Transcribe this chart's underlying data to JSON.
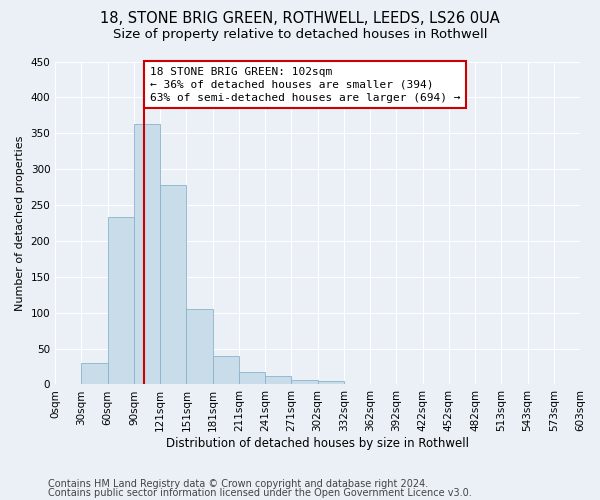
{
  "title1": "18, STONE BRIG GREEN, ROTHWELL, LEEDS, LS26 0UA",
  "title2": "Size of property relative to detached houses in Rothwell",
  "xlabel": "Distribution of detached houses by size in Rothwell",
  "ylabel": "Number of detached properties",
  "bar_values": [
    0,
    30,
    233,
    363,
    278,
    105,
    40,
    18,
    12,
    6,
    5,
    0,
    0,
    0,
    0,
    0,
    0,
    0,
    0,
    0
  ],
  "bin_labels": [
    "0sqm",
    "30sqm",
    "60sqm",
    "90sqm",
    "121sqm",
    "151sqm",
    "181sqm",
    "211sqm",
    "241sqm",
    "271sqm",
    "302sqm",
    "332sqm",
    "362sqm",
    "392sqm",
    "422sqm",
    "452sqm",
    "482sqm",
    "513sqm",
    "543sqm",
    "573sqm",
    "603sqm"
  ],
  "bar_color": "#c9dce9",
  "bar_edge_color": "#8ab4cc",
  "vline_color": "#cc0000",
  "annotation_text": "18 STONE BRIG GREEN: 102sqm\n← 36% of detached houses are smaller (394)\n63% of semi-detached houses are larger (694) →",
  "annotation_box_color": "#ffffff",
  "annotation_box_edge": "#cc0000",
  "ylim": [
    0,
    450
  ],
  "yticks": [
    0,
    50,
    100,
    150,
    200,
    250,
    300,
    350,
    400,
    450
  ],
  "footer1": "Contains HM Land Registry data © Crown copyright and database right 2024.",
  "footer2": "Contains public sector information licensed under the Open Government Licence v3.0.",
  "background_color": "#eaf0f6",
  "plot_bg_color": "#eaf0f6",
  "title1_fontsize": 10.5,
  "title2_fontsize": 9.5,
  "xlabel_fontsize": 8.5,
  "ylabel_fontsize": 8,
  "tick_fontsize": 7.5,
  "footer_fontsize": 7,
  "ann_fontsize": 8
}
